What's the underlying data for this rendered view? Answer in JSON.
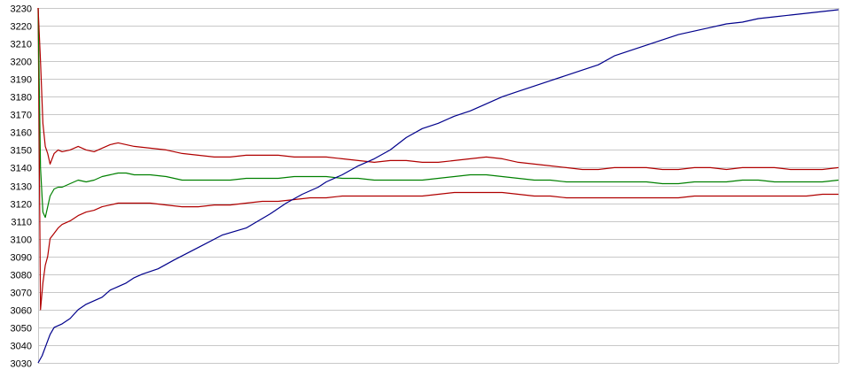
{
  "chart_data": {
    "type": "line",
    "title": "",
    "xlabel": "",
    "ylabel": "",
    "ylim": [
      3030,
      3230
    ],
    "xlim": [
      0,
      1000
    ],
    "y_ticks": [
      3030,
      3040,
      3050,
      3060,
      3070,
      3080,
      3090,
      3100,
      3110,
      3120,
      3130,
      3140,
      3150,
      3160,
      3170,
      3180,
      3190,
      3200,
      3210,
      3220,
      3230
    ],
    "grid": true,
    "legend": "none",
    "series": [
      {
        "color": "#00008b",
        "x": [
          0,
          5,
          10,
          15,
          20,
          25,
          30,
          40,
          50,
          60,
          70,
          80,
          90,
          100,
          110,
          120,
          130,
          150,
          170,
          200,
          230,
          260,
          290,
          310,
          330,
          350,
          360,
          380,
          400,
          420,
          440,
          460,
          480,
          500,
          520,
          540,
          560,
          580,
          600,
          620,
          640,
          660,
          680,
          700,
          720,
          740,
          760,
          780,
          800,
          820,
          840,
          860,
          880,
          900,
          920,
          940,
          960,
          980,
          1000
        ],
        "y": [
          3030,
          3034,
          3040,
          3046,
          3050,
          3051,
          3052,
          3055,
          3060,
          3063,
          3065,
          3067,
          3071,
          3073,
          3075,
          3078,
          3080,
          3083,
          3088,
          3095,
          3102,
          3106,
          3114,
          3120,
          3125,
          3129,
          3132,
          3136,
          3141,
          3145,
          3150,
          3157,
          3162,
          3165,
          3169,
          3172,
          3176,
          3180,
          3183,
          3186,
          3189,
          3192,
          3195,
          3198,
          3203,
          3206,
          3209,
          3212,
          3215,
          3217,
          3219,
          3221,
          3222,
          3224,
          3225,
          3226,
          3227,
          3228,
          3229
        ]
      },
      {
        "color": "#b00000",
        "x": [
          0,
          3,
          6,
          9,
          12,
          15,
          20,
          25,
          30,
          40,
          50,
          60,
          70,
          80,
          90,
          100,
          110,
          120,
          140,
          160,
          180,
          200,
          220,
          240,
          260,
          280,
          300,
          320,
          340,
          360,
          380,
          400,
          420,
          440,
          460,
          480,
          500,
          520,
          540,
          560,
          580,
          600,
          620,
          640,
          660,
          680,
          700,
          720,
          740,
          760,
          780,
          800,
          820,
          840,
          860,
          880,
          900,
          920,
          940,
          960,
          980,
          1000
        ],
        "y": [
          3230,
          3200,
          3165,
          3152,
          3148,
          3142,
          3148,
          3150,
          3149,
          3150,
          3152,
          3150,
          3149,
          3151,
          3153,
          3154,
          3153,
          3152,
          3151,
          3150,
          3148,
          3147,
          3146,
          3146,
          3147,
          3147,
          3147,
          3146,
          3146,
          3146,
          3145,
          3144,
          3143,
          3144,
          3144,
          3143,
          3143,
          3144,
          3145,
          3146,
          3145,
          3143,
          3142,
          3141,
          3140,
          3139,
          3139,
          3140,
          3140,
          3140,
          3139,
          3139,
          3140,
          3140,
          3139,
          3140,
          3140,
          3140,
          3139,
          3139,
          3139,
          3140
        ]
      },
      {
        "color": "#008000",
        "x": [
          0,
          3,
          6,
          9,
          12,
          15,
          20,
          25,
          30,
          40,
          50,
          60,
          70,
          80,
          90,
          100,
          110,
          120,
          140,
          160,
          180,
          200,
          220,
          240,
          260,
          280,
          300,
          320,
          340,
          360,
          380,
          400,
          420,
          440,
          460,
          480,
          500,
          520,
          540,
          560,
          580,
          600,
          620,
          640,
          660,
          680,
          700,
          720,
          740,
          760,
          780,
          800,
          820,
          840,
          860,
          880,
          900,
          920,
          940,
          960,
          980,
          1000
        ],
        "y": [
          3230,
          3140,
          3115,
          3112,
          3118,
          3124,
          3128,
          3129,
          3129,
          3131,
          3133,
          3132,
          3133,
          3135,
          3136,
          3137,
          3137,
          3136,
          3136,
          3135,
          3133,
          3133,
          3133,
          3133,
          3134,
          3134,
          3134,
          3135,
          3135,
          3135,
          3134,
          3134,
          3133,
          3133,
          3133,
          3133,
          3134,
          3135,
          3136,
          3136,
          3135,
          3134,
          3133,
          3133,
          3132,
          3132,
          3132,
          3132,
          3132,
          3132,
          3131,
          3131,
          3132,
          3132,
          3132,
          3133,
          3133,
          3132,
          3132,
          3132,
          3132,
          3133
        ]
      },
      {
        "color": "#b00000",
        "x": [
          0,
          3,
          6,
          9,
          12,
          15,
          20,
          25,
          30,
          40,
          50,
          60,
          70,
          80,
          90,
          100,
          110,
          120,
          140,
          160,
          180,
          200,
          220,
          240,
          260,
          280,
          300,
          320,
          340,
          360,
          380,
          400,
          420,
          440,
          460,
          480,
          500,
          520,
          540,
          560,
          580,
          600,
          620,
          640,
          660,
          680,
          700,
          720,
          740,
          760,
          780,
          800,
          820,
          840,
          860,
          880,
          900,
          920,
          940,
          960,
          980,
          1000
        ],
        "y": [
          3230,
          3060,
          3075,
          3085,
          3090,
          3100,
          3103,
          3106,
          3108,
          3110,
          3113,
          3115,
          3116,
          3118,
          3119,
          3120,
          3120,
          3120,
          3120,
          3119,
          3118,
          3118,
          3119,
          3119,
          3120,
          3121,
          3121,
          3122,
          3123,
          3123,
          3124,
          3124,
          3124,
          3124,
          3124,
          3124,
          3125,
          3126,
          3126,
          3126,
          3126,
          3125,
          3124,
          3124,
          3123,
          3123,
          3123,
          3123,
          3123,
          3123,
          3123,
          3123,
          3124,
          3124,
          3124,
          3124,
          3124,
          3124,
          3124,
          3124,
          3125,
          3125
        ]
      }
    ]
  }
}
